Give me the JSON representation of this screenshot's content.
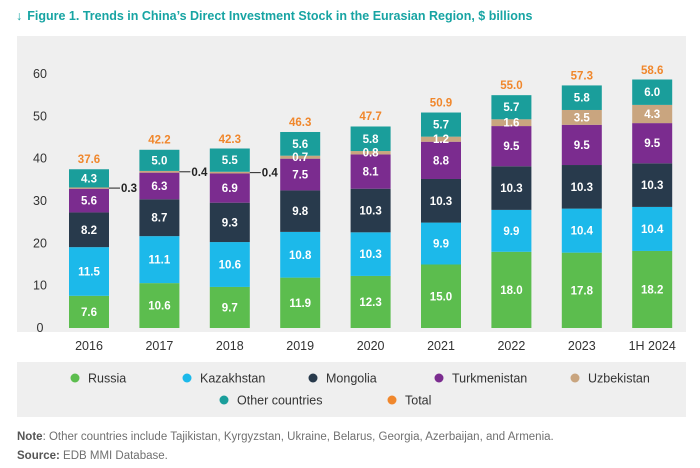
{
  "figure_title": "Figure 1. Trends in China’s Direct Investment Stock in the Eurasian Region, $ billions",
  "note_label": "Note",
  "note_text": ": Other countries include Tajikistan, Kyrgyzstan, Ukraine, Belarus, Georgia, Azerbaijan, and Armenia.",
  "source_label": "Source:",
  "source_text": " EDB MMI Database.",
  "icons": {
    "title_arrow": "arrow-down-icon"
  },
  "chart_data": {
    "type": "bar",
    "stacked": true,
    "categories": [
      "2016",
      "2017",
      "2018",
      "2019",
      "2020",
      "2021",
      "2022",
      "2023",
      "1H 2024"
    ],
    "ylim": [
      0,
      60
    ],
    "yticks": [
      0,
      10,
      20,
      30,
      40,
      50,
      60
    ],
    "grid": false,
    "legend_position": "bottom",
    "series": [
      {
        "name": "Russia",
        "color": "#5cbd4e",
        "values": [
          7.6,
          10.6,
          9.7,
          11.9,
          12.3,
          15.0,
          18.0,
          17.8,
          18.2
        ]
      },
      {
        "name": "Kazakhstan",
        "color": "#1cb9ea",
        "values": [
          11.5,
          11.1,
          10.6,
          10.8,
          10.3,
          9.9,
          9.9,
          10.4,
          10.4
        ]
      },
      {
        "name": "Mongolia",
        "color": "#283a4c",
        "values": [
          8.2,
          8.7,
          9.3,
          9.8,
          10.3,
          10.3,
          10.3,
          10.3,
          10.3
        ]
      },
      {
        "name": "Turkmenistan",
        "color": "#7b2c8f",
        "values": [
          5.6,
          6.3,
          6.9,
          7.5,
          8.1,
          8.8,
          9.5,
          9.5,
          9.5
        ]
      },
      {
        "name": "Uzbekistan",
        "color": "#c9a57f",
        "values": [
          0.3,
          0.4,
          0.4,
          0.7,
          0.8,
          1.2,
          1.6,
          3.5,
          4.3
        ]
      },
      {
        "name": "Other countries",
        "color": "#1a9e9b",
        "values": [
          4.3,
          5.0,
          5.5,
          5.6,
          5.8,
          5.7,
          5.7,
          5.8,
          6.0
        ]
      }
    ],
    "value_labels": [
      [
        "7.6",
        "10.6",
        "9.7",
        "11.9",
        "12.3",
        "15.0",
        "18.0",
        "17.8",
        "18.2"
      ],
      [
        "11.5",
        "11.1",
        "10.6",
        "10.8",
        "10.3",
        "9.9",
        "9.9",
        "10.4",
        "10.4"
      ],
      [
        "8.2",
        "8.7",
        "9.3",
        "9.8",
        "10.3",
        "10.3",
        "10.3",
        "10.3",
        "10.3"
      ],
      [
        "5.6",
        "6.3",
        "6.9",
        "7.5",
        "8.1",
        "8.8",
        "9.5",
        "9.5",
        "9.5"
      ],
      [
        "0.3",
        "0.4",
        "0.4",
        "0.7",
        "0.8",
        "1.2",
        "1.6",
        "3.5",
        "4.3"
      ],
      [
        "4.3",
        "5.0",
        "5.5",
        "5.6",
        "5.8",
        "5.7",
        "5.7",
        "5.8",
        "6.0"
      ]
    ],
    "uzbekistan_callouts": [
      "0.3",
      "0.4",
      "0.4"
    ],
    "totals": {
      "name": "Total",
      "color": "#f0872c",
      "values": [
        37.6,
        42.2,
        42.3,
        46.3,
        47.7,
        50.9,
        55.0,
        57.3,
        58.6
      ],
      "labels": [
        "37.6",
        "42.2",
        "42.3",
        "46.3",
        "47.7",
        "50.9",
        "55.0",
        "57.3",
        "58.6"
      ]
    }
  }
}
